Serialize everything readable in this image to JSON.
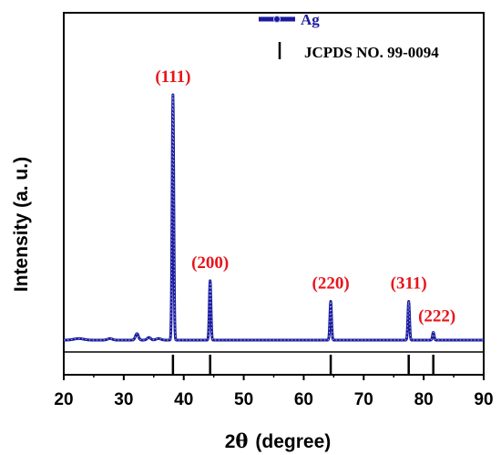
{
  "chart_data": {
    "type": "line",
    "xlabel_prefix": "2",
    "xlabel_symbol": "θ",
    "xlabel_rest": "(degree)",
    "ylabel": "Intensity  (a. u.)",
    "xlim": [
      20,
      90
    ],
    "x_ticks": [
      "20",
      "30",
      "40",
      "50",
      "60",
      "70",
      "80",
      "90"
    ],
    "y_ticks_shown": false,
    "legend_placement": "top-right",
    "series": [
      {
        "name": "Ag",
        "color": "#1a1a9c",
        "baseline": 0.05,
        "minor_peaks": [
          {
            "x": 22.5,
            "h": 0.006,
            "w": 0.8
          },
          {
            "x": 27.7,
            "h": 0.006,
            "w": 0.4
          },
          {
            "x": 32.2,
            "h": 0.025,
            "w": 0.25
          },
          {
            "x": 34.2,
            "h": 0.01,
            "w": 0.3
          },
          {
            "x": 35.8,
            "h": 0.006,
            "w": 0.4
          }
        ],
        "peaks": [
          {
            "label": "(111)",
            "x": 38.2,
            "height": 1.0
          },
          {
            "label": "(200)",
            "x": 44.4,
            "height": 0.28
          },
          {
            "label": "(220)",
            "x": 64.5,
            "height": 0.2
          },
          {
            "label": "(311)",
            "x": 77.5,
            "height": 0.2
          },
          {
            "label": "(222)",
            "x": 81.6,
            "height": 0.08
          }
        ]
      }
    ],
    "reference": {
      "name": "JCPDS NO. 99-0094",
      "positions": [
        38.2,
        44.4,
        64.5,
        77.5,
        81.6
      ]
    }
  }
}
